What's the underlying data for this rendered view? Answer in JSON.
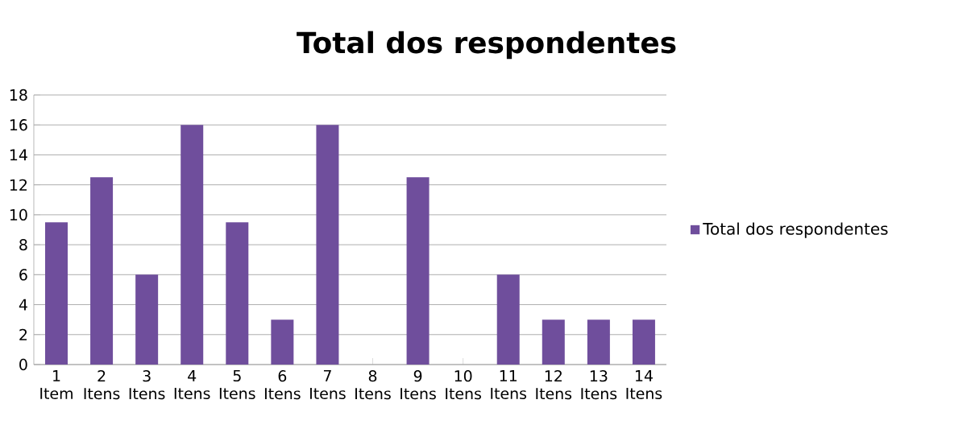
{
  "chart_data": {
    "type": "bar",
    "title": "Total dos respondentes",
    "categories": [
      "1 Item",
      "2 Itens",
      "3 Itens",
      "4 Itens",
      "5 Itens",
      "6 Itens",
      "7 Itens",
      "8 Itens",
      "9 Itens",
      "10 Itens",
      "11 Itens",
      "12 Itens",
      "13 Itens",
      "14 Itens"
    ],
    "series": [
      {
        "name": "Total dos respondentes",
        "color": "#6f4e9c",
        "values": [
          9.5,
          12.5,
          6,
          16,
          9.5,
          3,
          16,
          0,
          12.5,
          0,
          6,
          3,
          3,
          3
        ]
      }
    ],
    "ylim": [
      0,
      18
    ],
    "yticks": [
      0,
      2,
      4,
      6,
      8,
      10,
      12,
      14,
      16,
      18
    ],
    "grid": "y",
    "legend": "right"
  }
}
